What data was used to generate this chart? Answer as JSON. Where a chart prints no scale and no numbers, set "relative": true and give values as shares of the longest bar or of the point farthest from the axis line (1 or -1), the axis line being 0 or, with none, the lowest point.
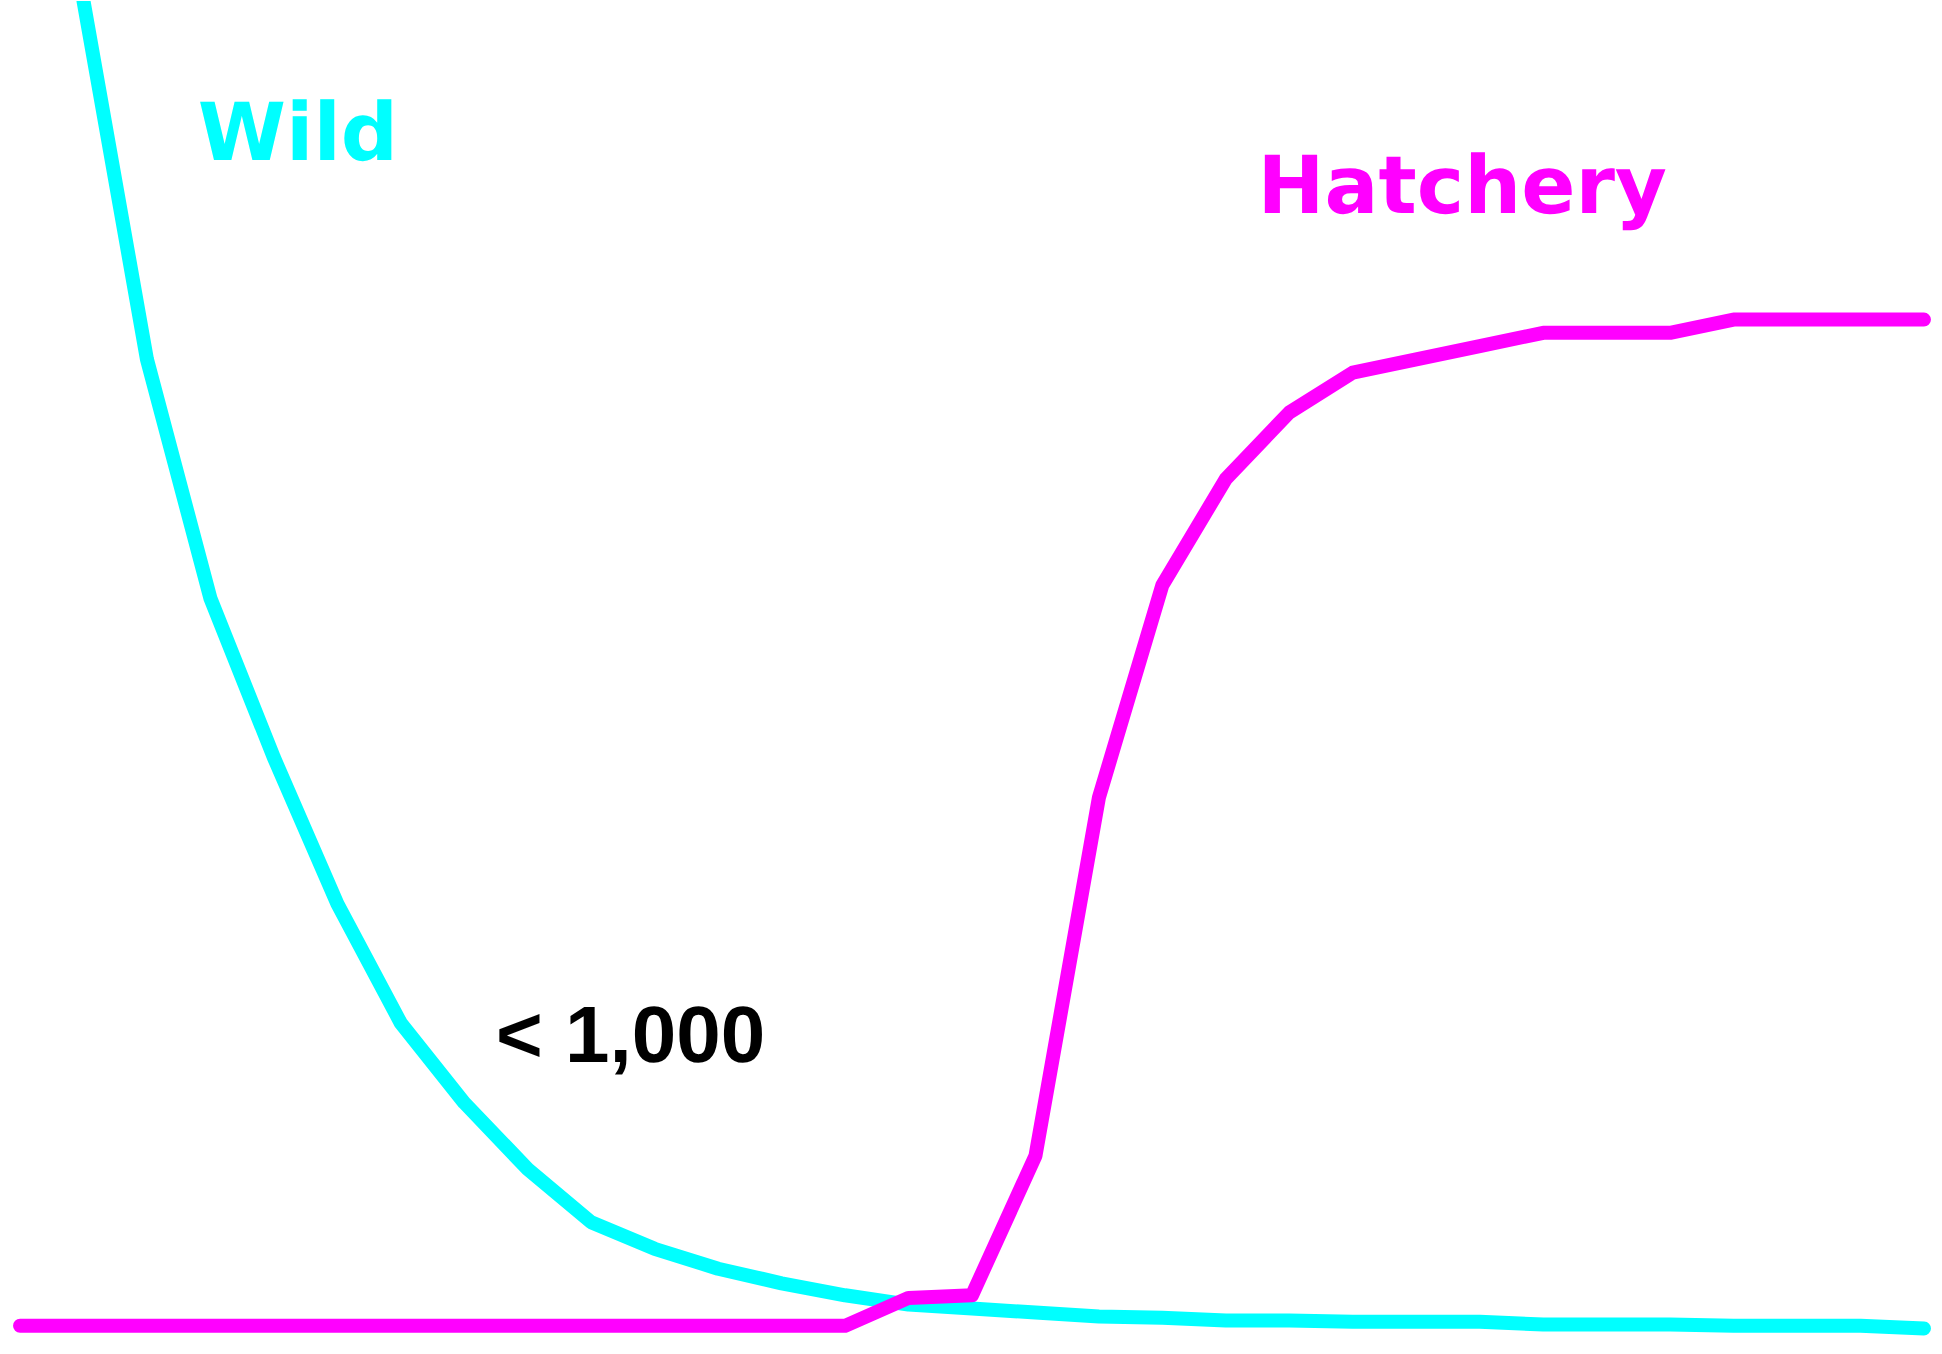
{
  "chart_data": {
    "type": "line",
    "relative": true,
    "legend": false,
    "grid": false,
    "categories": [
      null,
      null,
      null,
      null,
      null,
      null,
      null,
      null,
      null,
      null,
      null,
      null,
      null,
      null,
      null,
      null,
      null,
      null,
      null,
      null,
      null,
      null,
      null,
      null,
      null,
      null,
      null,
      null,
      null,
      null,
      null
    ],
    "series": [
      {
        "name": "Wild",
        "color": "#00ffff",
        "values": [
          null,
          1,
          0.73,
          0.55,
          0.43,
          0.32,
          0.23,
          0.17,
          0.12,
          0.08,
          0.06,
          0.045,
          0.034,
          0.025,
          0.018,
          0.015,
          0.012,
          0.009,
          0.008,
          0.006,
          0.006,
          0.005,
          0.005,
          0.005,
          0.003,
          0.003,
          0.003,
          0.002,
          0.002,
          0.002,
          0
        ]
      },
      {
        "name": "Hatchery",
        "color": "#ff00ff",
        "values": [
          0.002,
          0.002,
          0.002,
          0.002,
          0.002,
          0.002,
          0.002,
          0.002,
          0.002,
          0.002,
          0.002,
          0.002,
          0.002,
          0.002,
          0.023,
          0.025,
          0.13,
          0.4,
          0.56,
          0.64,
          0.69,
          0.72,
          0.73,
          0.74,
          0.75,
          0.75,
          0.75,
          0.76,
          0.76,
          0.76,
          0.76
        ]
      }
    ],
    "annotations": [
      "< 1,000"
    ]
  }
}
